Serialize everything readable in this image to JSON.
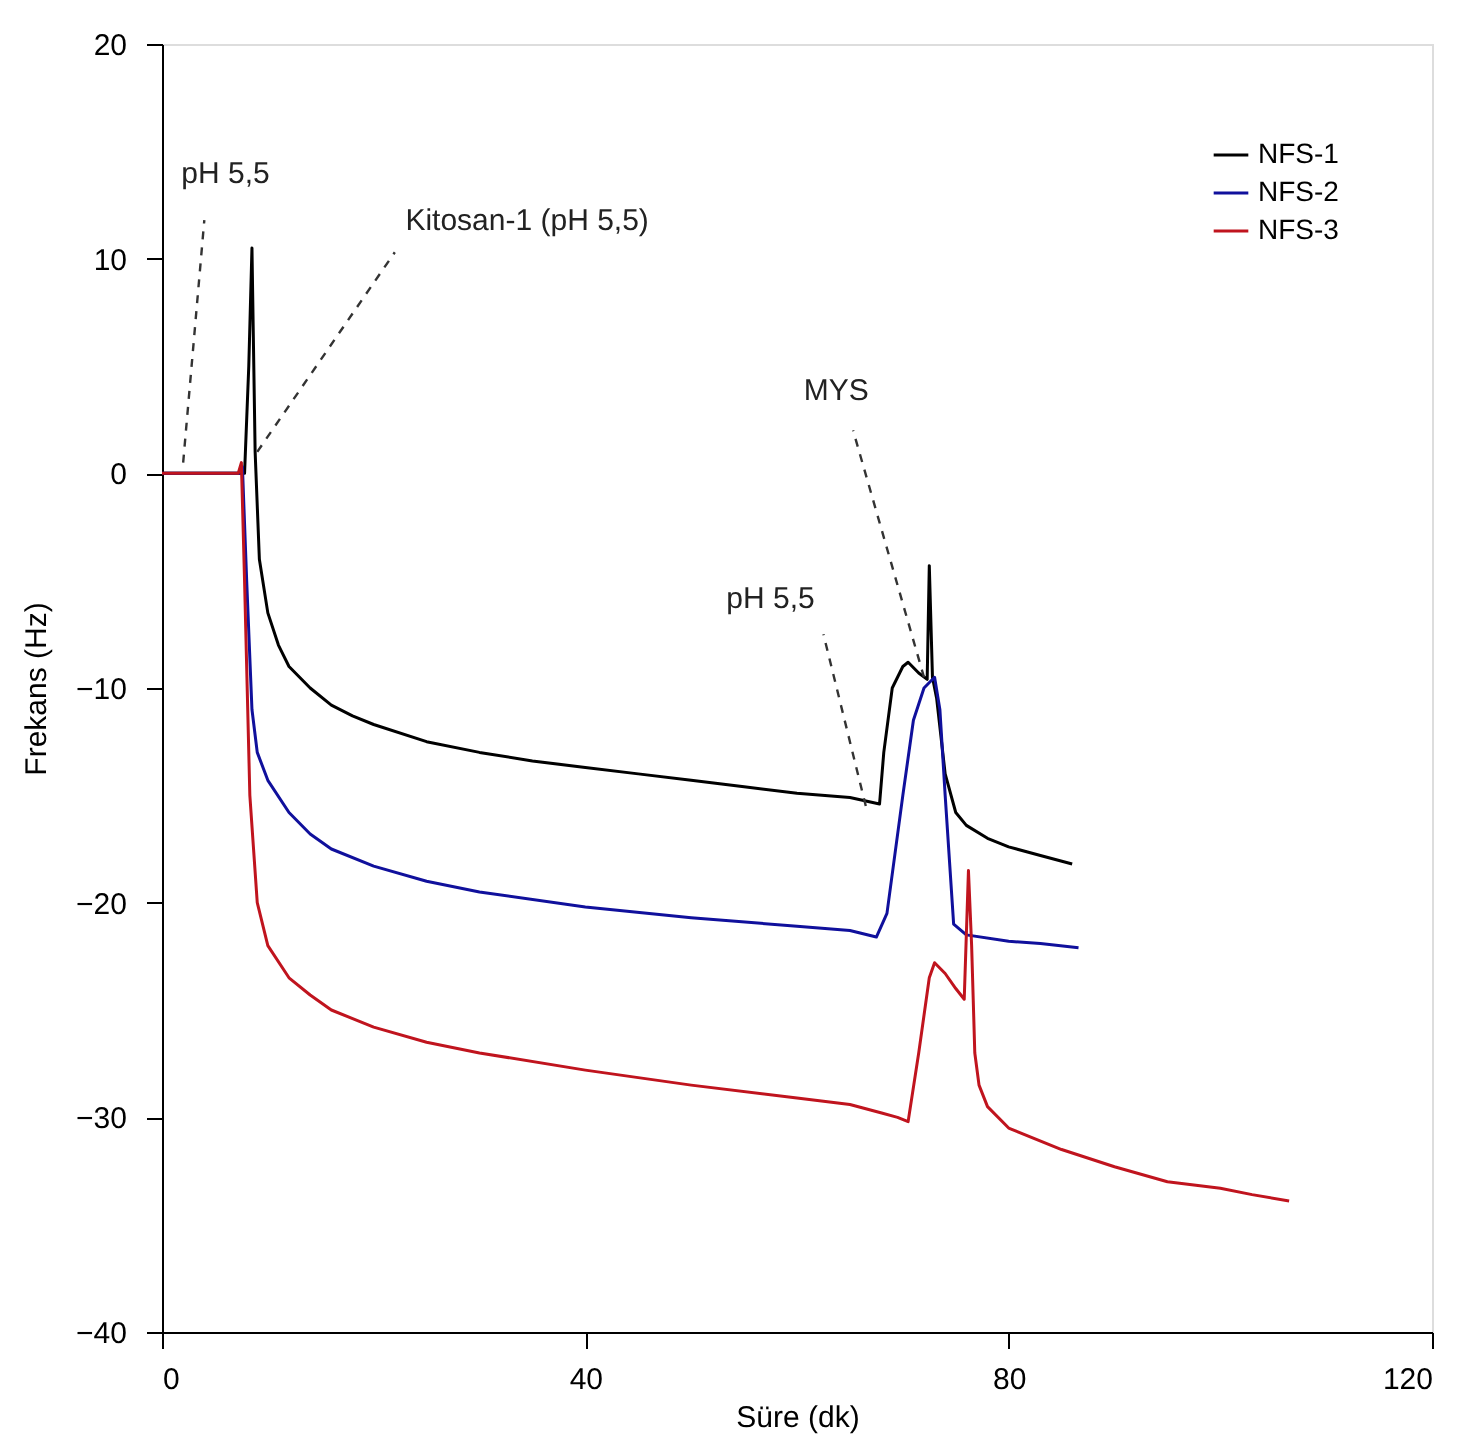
{
  "chart_data": {
    "type": "line",
    "xlabel": "Süre (dk)",
    "ylabel": "Frekans (Hz)",
    "xlim": [
      0,
      120
    ],
    "xticks": [
      0,
      40,
      80,
      120
    ],
    "ylim": [
      -40,
      20
    ],
    "yticks": [
      -40,
      -30,
      -20,
      -10,
      0,
      10,
      20
    ],
    "grid": false,
    "legend": "top right",
    "marker": "none",
    "line_style": "solid",
    "series": [
      {
        "name": "NFS-1",
        "color": "#000000",
        "x": [
          0,
          7.8,
          8.2,
          8.5,
          8.8,
          9.2,
          10,
          11,
          12,
          14,
          16,
          18,
          20,
          25,
          30,
          35,
          40,
          45,
          50,
          55,
          60,
          65,
          67.8,
          68.2,
          69,
          70,
          70.5,
          71.5,
          72.3,
          72.5,
          72.8,
          73.2,
          74,
          75,
          76,
          78,
          80,
          83,
          86
        ],
        "values": [
          0,
          0,
          5,
          10.5,
          1,
          -4,
          -6.5,
          -8,
          -9,
          -10,
          -10.8,
          -11.3,
          -11.7,
          -12.5,
          -13,
          -13.4,
          -13.7,
          -14,
          -14.3,
          -14.6,
          -14.9,
          -15.1,
          -15.4,
          -13,
          -10,
          -9,
          -8.8,
          -9.3,
          -9.6,
          -4.3,
          -9.5,
          -10.5,
          -14,
          -15.8,
          -16.4,
          -17,
          -17.4,
          -17.8,
          -18.2
        ]
      },
      {
        "name": "NFS-2",
        "color": "#10109c",
        "x": [
          0,
          7.3,
          7.6,
          8,
          8.5,
          9,
          10,
          12,
          14,
          16,
          20,
          25,
          30,
          40,
          50,
          60,
          65,
          67.5,
          68.5,
          70,
          71,
          72,
          73,
          73.5,
          74,
          74.8,
          76,
          80,
          83,
          86.6
        ],
        "values": [
          0,
          0,
          0.3,
          -5,
          -11,
          -13,
          -14.3,
          -15.8,
          -16.8,
          -17.5,
          -18.3,
          -19,
          -19.5,
          -20.2,
          -20.7,
          -21.1,
          -21.3,
          -21.6,
          -20.5,
          -15,
          -11.5,
          -10,
          -9.5,
          -11,
          -15,
          -21,
          -21.5,
          -21.8,
          -21.9,
          -22.1
        ]
      },
      {
        "name": "NFS-3",
        "color": "#c0141e",
        "x": [
          0,
          7.2,
          7.5,
          7.8,
          8.3,
          9,
          10,
          12,
          14,
          16,
          20,
          25,
          30,
          40,
          50,
          60,
          65,
          68,
          69.5,
          70.5,
          71.5,
          72.5,
          73,
          74,
          75,
          75.8,
          76.2,
          76.5,
          76.8,
          77.2,
          78,
          80,
          85,
          90,
          95,
          100,
          103,
          106.5
        ],
        "values": [
          0,
          0,
          0.5,
          -5,
          -15,
          -20,
          -22,
          -23.5,
          -24.3,
          -25,
          -25.8,
          -26.5,
          -27,
          -27.8,
          -28.5,
          -29.1,
          -29.4,
          -29.8,
          -30,
          -30.2,
          -27,
          -23.5,
          -22.8,
          -23.3,
          -24,
          -24.5,
          -18.5,
          -22,
          -27,
          -28.5,
          -29.5,
          -30.5,
          -31.5,
          -32.3,
          -33,
          -33.3,
          -33.6,
          -33.9
        ]
      }
    ],
    "annotations": [
      {
        "text": "pH 5,5",
        "x": 2,
        "y": 0.5
      },
      {
        "text": "Kitosan-1 (pH 5,5)",
        "x": 9,
        "y": 1
      },
      {
        "text": "MYS",
        "x": 72,
        "y": -9.5
      },
      {
        "text": "pH 5,5",
        "x": 66.5,
        "y": -15.5
      }
    ]
  }
}
